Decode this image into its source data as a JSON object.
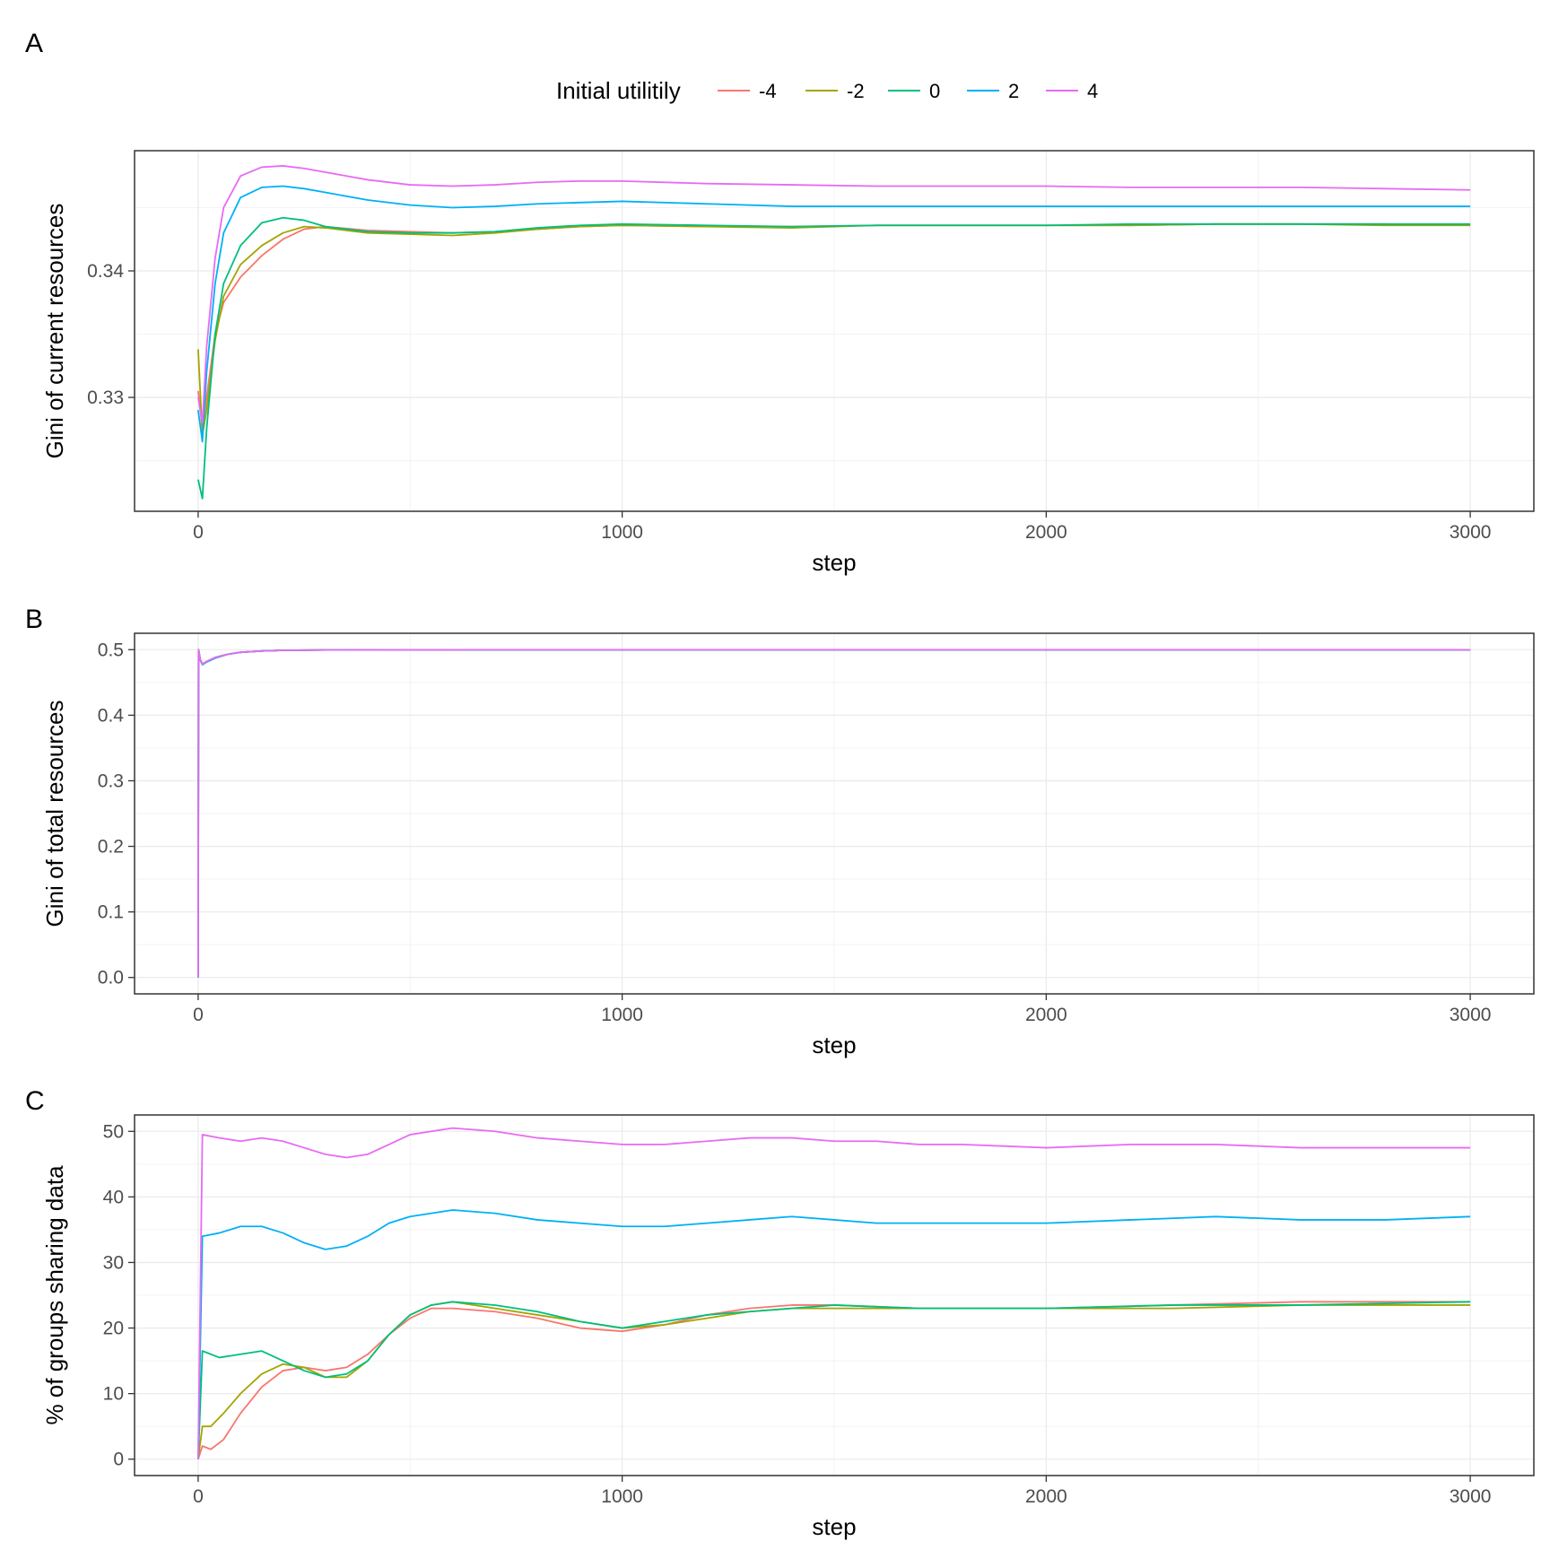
{
  "legend": {
    "title": "Initial utilitily",
    "entries": [
      {
        "label": "-4",
        "color": "#F8766D"
      },
      {
        "label": "-2",
        "color": "#A3A500"
      },
      {
        "label": "0",
        "color": "#00BF7D"
      },
      {
        "label": "2",
        "color": "#00B0F6"
      },
      {
        "label": "4",
        "color": "#E76BF3"
      }
    ],
    "placement": "top"
  },
  "chart_data": [
    {
      "panel": "A",
      "type": "line",
      "xlabel": "step",
      "ylabel": "Gini of current resources",
      "xlim": [
        -150,
        3150
      ],
      "ylim": [
        0.321,
        0.3495
      ],
      "xticks": [
        0,
        1000,
        2000,
        3000
      ],
      "yticks": [
        0.33,
        0.34
      ],
      "grid": true,
      "series": [
        {
          "name": "-4",
          "color": "#F8766D",
          "x": [
            0,
            10,
            20,
            40,
            60,
            100,
            150,
            200,
            250,
            300,
            400,
            500,
            600,
            700,
            800,
            900,
            1000,
            1200,
            1400,
            1600,
            1800,
            2000,
            2200,
            2400,
            2600,
            2800,
            3000
          ],
          "y": [
            0.3305,
            0.3275,
            0.33,
            0.335,
            0.3375,
            0.3395,
            0.3412,
            0.3425,
            0.3433,
            0.3435,
            0.3432,
            0.3431,
            0.343,
            0.3431,
            0.3433,
            0.3435,
            0.3436,
            0.3435,
            0.3435,
            0.3436,
            0.3436,
            0.3436,
            0.3436,
            0.3437,
            0.3437,
            0.3437,
            0.3436
          ]
        },
        {
          "name": "-2",
          "color": "#A3A500",
          "x": [
            0,
            10,
            20,
            40,
            60,
            100,
            150,
            200,
            250,
            300,
            400,
            500,
            600,
            700,
            800,
            900,
            1000,
            1200,
            1400,
            1600,
            1800,
            2000,
            2200,
            2400,
            2600,
            2800,
            3000
          ],
          "y": [
            0.3338,
            0.327,
            0.329,
            0.3345,
            0.338,
            0.3405,
            0.342,
            0.343,
            0.3435,
            0.3434,
            0.343,
            0.3429,
            0.3428,
            0.343,
            0.3433,
            0.3435,
            0.3436,
            0.3435,
            0.3434,
            0.3436,
            0.3436,
            0.3436,
            0.3436,
            0.3437,
            0.3437,
            0.3436,
            0.3436
          ]
        },
        {
          "name": "0",
          "color": "#00BF7D",
          "x": [
            0,
            10,
            20,
            40,
            60,
            100,
            150,
            200,
            250,
            300,
            400,
            500,
            600,
            700,
            800,
            900,
            1000,
            1200,
            1400,
            1600,
            1800,
            2000,
            2200,
            2400,
            2600,
            2800,
            3000
          ],
          "y": [
            0.3235,
            0.322,
            0.3275,
            0.335,
            0.339,
            0.342,
            0.3438,
            0.3442,
            0.344,
            0.3435,
            0.3431,
            0.343,
            0.343,
            0.3431,
            0.3434,
            0.3436,
            0.3437,
            0.3436,
            0.3435,
            0.3436,
            0.3436,
            0.3436,
            0.3437,
            0.3437,
            0.3437,
            0.3437,
            0.3437
          ]
        },
        {
          "name": "2",
          "color": "#00B0F6",
          "x": [
            0,
            10,
            20,
            40,
            60,
            100,
            150,
            200,
            250,
            300,
            400,
            500,
            600,
            700,
            800,
            900,
            1000,
            1200,
            1400,
            1600,
            1800,
            2000,
            2200,
            2400,
            2600,
            2800,
            3000
          ],
          "y": [
            0.329,
            0.3265,
            0.332,
            0.339,
            0.343,
            0.3458,
            0.3466,
            0.3467,
            0.3465,
            0.3462,
            0.3456,
            0.3452,
            0.345,
            0.3451,
            0.3453,
            0.3454,
            0.3455,
            0.3453,
            0.3451,
            0.3451,
            0.3451,
            0.3451,
            0.3451,
            0.3451,
            0.3451,
            0.3451,
            0.3451
          ]
        },
        {
          "name": "4",
          "color": "#E76BF3",
          "x": [
            0,
            10,
            20,
            40,
            60,
            100,
            150,
            200,
            250,
            300,
            400,
            500,
            600,
            700,
            800,
            900,
            1000,
            1200,
            1400,
            1600,
            1800,
            2000,
            2200,
            2400,
            2600,
            2800,
            3000
          ],
          "y": [
            0.33,
            0.328,
            0.334,
            0.341,
            0.345,
            0.3475,
            0.3482,
            0.3483,
            0.3481,
            0.3478,
            0.3472,
            0.3468,
            0.3467,
            0.3468,
            0.347,
            0.3471,
            0.3471,
            0.3469,
            0.3468,
            0.3467,
            0.3467,
            0.3467,
            0.3466,
            0.3466,
            0.3466,
            0.3465,
            0.3464
          ]
        }
      ]
    },
    {
      "panel": "B",
      "type": "line",
      "xlabel": "step",
      "ylabel": "Gini of total resources",
      "xlim": [
        -150,
        3150
      ],
      "ylim": [
        -0.025,
        0.525
      ],
      "xticks": [
        0,
        1000,
        2000,
        3000
      ],
      "yticks": [
        0.0,
        0.1,
        0.2,
        0.3,
        0.4,
        0.5
      ],
      "ytick_labels": [
        "0.0",
        "0.1",
        "0.2",
        "0.3",
        "0.4",
        "0.5"
      ],
      "grid": true,
      "series": [
        {
          "name": "-4",
          "color": "#F8766D",
          "x": [
            0,
            1,
            5,
            10,
            20,
            40,
            70,
            100,
            150,
            200,
            300,
            500,
            1000,
            2000,
            3000
          ],
          "y": [
            0.0,
            0.5,
            0.485,
            0.478,
            0.482,
            0.488,
            0.493,
            0.496,
            0.498,
            0.499,
            0.4995,
            0.4998,
            0.4999,
            0.4999,
            0.4999
          ]
        },
        {
          "name": "-2",
          "color": "#A3A500",
          "x": [
            0,
            1,
            5,
            10,
            20,
            40,
            70,
            100,
            150,
            200,
            300,
            500,
            1000,
            2000,
            3000
          ],
          "y": [
            0.0,
            0.5,
            0.485,
            0.478,
            0.482,
            0.488,
            0.493,
            0.496,
            0.498,
            0.499,
            0.4995,
            0.4998,
            0.4999,
            0.4999,
            0.4999
          ]
        },
        {
          "name": "0",
          "color": "#00BF7D",
          "x": [
            0,
            1,
            5,
            10,
            20,
            40,
            70,
            100,
            150,
            200,
            300,
            500,
            1000,
            2000,
            3000
          ],
          "y": [
            0.0,
            0.5,
            0.485,
            0.478,
            0.482,
            0.488,
            0.493,
            0.496,
            0.498,
            0.499,
            0.4995,
            0.4998,
            0.4999,
            0.4999,
            0.4999
          ]
        },
        {
          "name": "2",
          "color": "#00B0F6",
          "x": [
            0,
            1,
            5,
            10,
            20,
            40,
            70,
            100,
            150,
            200,
            300,
            500,
            1000,
            2000,
            3000
          ],
          "y": [
            0.0,
            0.5,
            0.484,
            0.477,
            0.481,
            0.487,
            0.493,
            0.496,
            0.498,
            0.499,
            0.4995,
            0.4998,
            0.4999,
            0.4999,
            0.4999
          ]
        },
        {
          "name": "4",
          "color": "#E76BF3",
          "x": [
            0,
            1,
            5,
            10,
            20,
            40,
            70,
            100,
            150,
            200,
            300,
            500,
            1000,
            2000,
            3000
          ],
          "y": [
            0.0,
            0.5,
            0.485,
            0.478,
            0.482,
            0.488,
            0.493,
            0.496,
            0.498,
            0.499,
            0.4995,
            0.4998,
            0.4999,
            0.4999,
            0.4999
          ]
        }
      ]
    },
    {
      "panel": "C",
      "type": "line",
      "xlabel": "step",
      "ylabel": "% of groups sharing data",
      "xlim": [
        -150,
        3150
      ],
      "ylim": [
        -2.5,
        52.5
      ],
      "xticks": [
        0,
        1000,
        2000,
        3000
      ],
      "yticks": [
        0,
        10,
        20,
        30,
        40,
        50
      ],
      "grid": true,
      "series": [
        {
          "name": "-4",
          "color": "#F8766D",
          "x": [
            0,
            10,
            30,
            60,
            100,
            150,
            200,
            250,
            300,
            350,
            400,
            450,
            500,
            550,
            600,
            700,
            800,
            900,
            1000,
            1100,
            1200,
            1300,
            1400,
            1500,
            1700,
            2000,
            2300,
            2600,
            3000
          ],
          "y": [
            0,
            2,
            1.5,
            3,
            7,
            11,
            13.5,
            14,
            13.5,
            14,
            16,
            19,
            21.5,
            23,
            23,
            22.5,
            21.5,
            20,
            19.5,
            20.5,
            22,
            23,
            23.5,
            23.5,
            23,
            23,
            23.5,
            24,
            24
          ]
        },
        {
          "name": "-2",
          "color": "#A3A500",
          "x": [
            0,
            10,
            30,
            60,
            100,
            150,
            200,
            250,
            300,
            350,
            400,
            450,
            500,
            550,
            600,
            700,
            800,
            900,
            1000,
            1100,
            1200,
            1300,
            1400,
            1500,
            1700,
            2000,
            2300,
            2600,
            3000
          ],
          "y": [
            0,
            5,
            5,
            7,
            10,
            13,
            14.5,
            14,
            12.5,
            12.5,
            15,
            19,
            22,
            23.5,
            24,
            23,
            22,
            21,
            20,
            20.5,
            21.5,
            22.5,
            23,
            23,
            23,
            23,
            23,
            23.5,
            23.5
          ]
        },
        {
          "name": "0",
          "color": "#00BF7D",
          "x": [
            0,
            10,
            50,
            100,
            150,
            200,
            250,
            300,
            350,
            400,
            450,
            500,
            550,
            600,
            700,
            800,
            900,
            1000,
            1100,
            1200,
            1300,
            1400,
            1500,
            1700,
            2000,
            2300,
            2600,
            3000
          ],
          "y": [
            0,
            16.5,
            15.5,
            16,
            16.5,
            15,
            13.5,
            12.5,
            13,
            15,
            19,
            22,
            23.5,
            24,
            23.5,
            22.5,
            21,
            20,
            21,
            22,
            22.5,
            23,
            23.5,
            23,
            23,
            23.5,
            23.5,
            24
          ]
        },
        {
          "name": "2",
          "color": "#00B0F6",
          "x": [
            0,
            10,
            50,
            100,
            150,
            200,
            250,
            300,
            350,
            400,
            450,
            500,
            550,
            600,
            700,
            800,
            900,
            1000,
            1100,
            1200,
            1300,
            1400,
            1500,
            1600,
            1700,
            1800,
            2000,
            2200,
            2400,
            2600,
            2800,
            3000
          ],
          "y": [
            0,
            34,
            34.5,
            35.5,
            35.5,
            34.5,
            33,
            32,
            32.5,
            34,
            36,
            37,
            37.5,
            38,
            37.5,
            36.5,
            36,
            35.5,
            35.5,
            36,
            36.5,
            37,
            36.5,
            36,
            36,
            36,
            36,
            36.5,
            37,
            36.5,
            36.5,
            37
          ]
        },
        {
          "name": "4",
          "color": "#E76BF3",
          "x": [
            0,
            10,
            50,
            100,
            150,
            200,
            250,
            300,
            350,
            400,
            450,
            500,
            550,
            600,
            700,
            800,
            900,
            1000,
            1100,
            1200,
            1300,
            1400,
            1500,
            1600,
            1700,
            1800,
            2000,
            2200,
            2400,
            2600,
            2800,
            3000
          ],
          "y": [
            0,
            49.5,
            49,
            48.5,
            49,
            48.5,
            47.5,
            46.5,
            46,
            46.5,
            48,
            49.5,
            50,
            50.5,
            50,
            49,
            48.5,
            48,
            48,
            48.5,
            49,
            49,
            48.5,
            48.5,
            48,
            48,
            47.5,
            48,
            48,
            47.5,
            47.5,
            47.5
          ]
        }
      ]
    }
  ]
}
